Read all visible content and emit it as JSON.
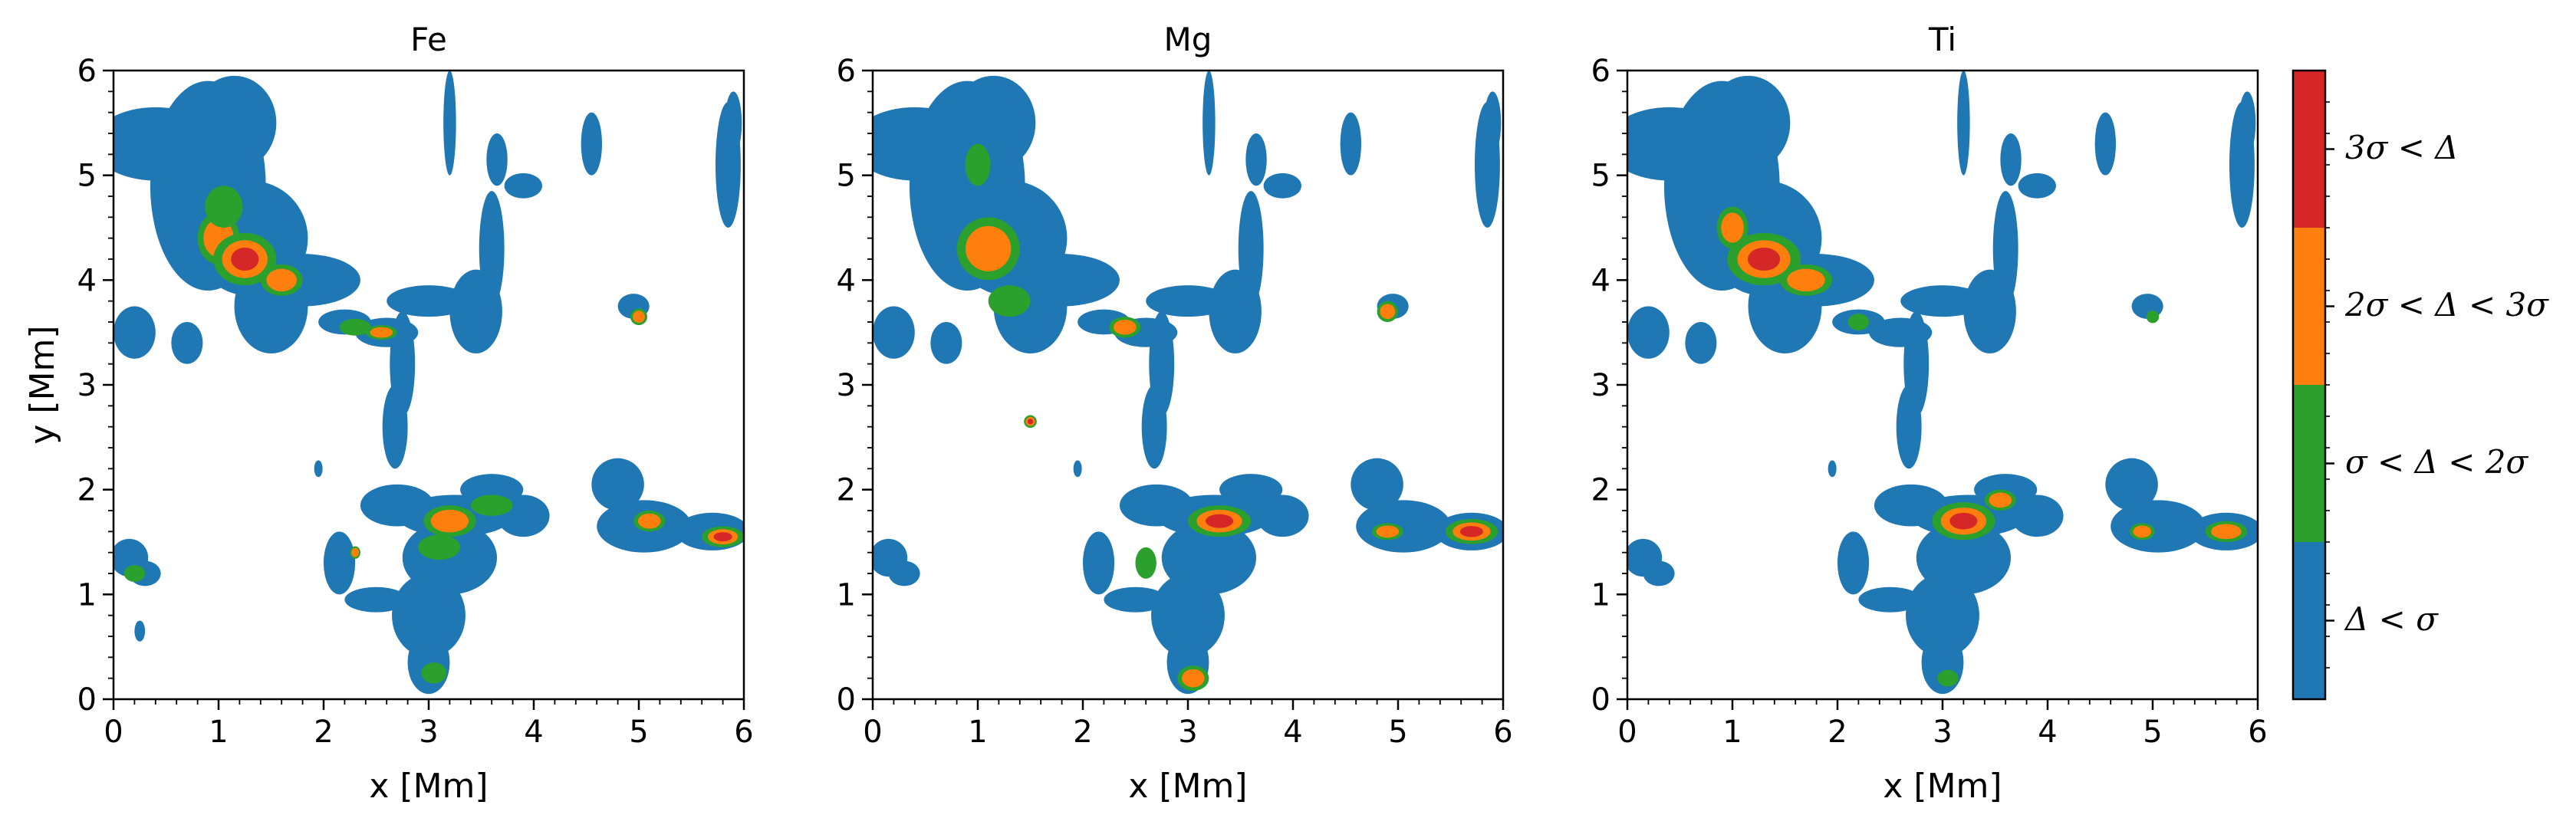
{
  "chart_data": {
    "type": "heatmap",
    "xlabel": "x [Mm]",
    "ylabel": "y [Mm]",
    "xlim": [
      0,
      6
    ],
    "ylim": [
      0,
      6
    ],
    "x_ticks": [
      "0",
      "1",
      "2",
      "3",
      "4",
      "5",
      "6"
    ],
    "y_ticks": [
      "0",
      "1",
      "2",
      "3",
      "4",
      "5",
      "6"
    ],
    "panels": [
      {
        "title": "Fe",
        "blobs": [
          [
            0.9,
            4.9,
            0.55,
            1.0
          ],
          [
            1.15,
            5.5,
            0.4,
            0.45
          ],
          [
            0.4,
            5.3,
            0.6,
            0.35
          ],
          [
            1.3,
            4.4,
            0.55,
            0.55
          ],
          [
            1.8,
            4.0,
            0.55,
            0.25
          ],
          [
            1.5,
            3.75,
            0.35,
            0.45
          ],
          [
            2.2,
            3.6,
            0.25,
            0.12
          ],
          [
            2.6,
            3.5,
            0.3,
            0.14
          ],
          [
            2.75,
            3.2,
            0.12,
            0.5
          ],
          [
            2.68,
            2.6,
            0.12,
            0.4
          ],
          [
            3.0,
            3.8,
            0.4,
            0.15
          ],
          [
            3.45,
            3.7,
            0.25,
            0.4
          ],
          [
            3.6,
            4.3,
            0.12,
            0.55
          ],
          [
            3.9,
            4.9,
            0.18,
            0.12
          ],
          [
            3.2,
            5.5,
            0.06,
            0.5
          ],
          [
            3.65,
            5.15,
            0.1,
            0.25
          ],
          [
            4.55,
            5.3,
            0.1,
            0.3
          ],
          [
            4.95,
            3.75,
            0.15,
            0.12
          ],
          [
            5.85,
            5.1,
            0.12,
            0.6
          ],
          [
            5.9,
            5.5,
            0.08,
            0.3
          ],
          [
            0.2,
            3.5,
            0.2,
            0.25
          ],
          [
            0.7,
            3.4,
            0.15,
            0.2
          ],
          [
            2.7,
            1.85,
            0.35,
            0.2
          ],
          [
            3.25,
            1.75,
            0.55,
            0.2
          ],
          [
            3.2,
            1.35,
            0.45,
            0.35
          ],
          [
            3.0,
            0.8,
            0.35,
            0.4
          ],
          [
            3.0,
            0.35,
            0.2,
            0.3
          ],
          [
            2.5,
            0.95,
            0.3,
            0.12
          ],
          [
            2.15,
            1.3,
            0.15,
            0.3
          ],
          [
            3.6,
            2.0,
            0.3,
            0.15
          ],
          [
            3.9,
            1.75,
            0.25,
            0.2
          ],
          [
            4.8,
            2.05,
            0.25,
            0.25
          ],
          [
            5.05,
            1.65,
            0.45,
            0.25
          ],
          [
            5.7,
            1.6,
            0.35,
            0.18
          ],
          [
            0.15,
            1.35,
            0.18,
            0.18
          ],
          [
            0.3,
            1.2,
            0.15,
            0.12
          ],
          [
            0.25,
            0.65,
            0.05,
            0.1
          ],
          [
            1.95,
            2.2,
            0.04,
            0.08
          ]
        ],
        "hot": [
          [
            1.0,
            4.4,
            2,
            0.2,
            0.25
          ],
          [
            1.25,
            4.2,
            3,
            0.3,
            0.25
          ],
          [
            1.6,
            4.0,
            2,
            0.2,
            0.15
          ],
          [
            2.3,
            3.55,
            1,
            0.15,
            0.08
          ],
          [
            2.55,
            3.5,
            2,
            0.15,
            0.07
          ],
          [
            1.05,
            4.7,
            1,
            0.18,
            0.2
          ],
          [
            3.2,
            1.7,
            2,
            0.25,
            0.15
          ],
          [
            3.6,
            1.85,
            1,
            0.2,
            0.1
          ],
          [
            3.1,
            1.45,
            1,
            0.2,
            0.12
          ],
          [
            3.05,
            0.25,
            1,
            0.12,
            0.1
          ],
          [
            5.8,
            1.55,
            3,
            0.2,
            0.1
          ],
          [
            5.1,
            1.7,
            2,
            0.15,
            0.1
          ],
          [
            5.0,
            3.65,
            2,
            0.08,
            0.08
          ],
          [
            0.2,
            1.2,
            1,
            0.1,
            0.08
          ],
          [
            2.3,
            1.4,
            2,
            0.05,
            0.06
          ]
        ]
      },
      {
        "title": "Mg",
        "blobs": [
          [
            0.9,
            4.9,
            0.55,
            1.0
          ],
          [
            1.15,
            5.5,
            0.4,
            0.45
          ],
          [
            0.4,
            5.3,
            0.6,
            0.35
          ],
          [
            1.3,
            4.4,
            0.55,
            0.55
          ],
          [
            1.8,
            4.0,
            0.55,
            0.25
          ],
          [
            1.5,
            3.75,
            0.35,
            0.45
          ],
          [
            2.2,
            3.6,
            0.25,
            0.12
          ],
          [
            2.6,
            3.5,
            0.3,
            0.14
          ],
          [
            2.75,
            3.2,
            0.12,
            0.5
          ],
          [
            2.68,
            2.6,
            0.12,
            0.4
          ],
          [
            3.0,
            3.8,
            0.4,
            0.15
          ],
          [
            3.45,
            3.7,
            0.25,
            0.4
          ],
          [
            3.6,
            4.3,
            0.12,
            0.55
          ],
          [
            3.9,
            4.9,
            0.18,
            0.12
          ],
          [
            3.2,
            5.5,
            0.06,
            0.5
          ],
          [
            3.65,
            5.15,
            0.1,
            0.25
          ],
          [
            4.55,
            5.3,
            0.1,
            0.3
          ],
          [
            4.95,
            3.75,
            0.15,
            0.12
          ],
          [
            5.85,
            5.1,
            0.12,
            0.6
          ],
          [
            5.9,
            5.5,
            0.08,
            0.3
          ],
          [
            0.2,
            3.5,
            0.2,
            0.25
          ],
          [
            0.7,
            3.4,
            0.15,
            0.2
          ],
          [
            2.7,
            1.85,
            0.35,
            0.2
          ],
          [
            3.25,
            1.75,
            0.55,
            0.2
          ],
          [
            3.2,
            1.35,
            0.45,
            0.35
          ],
          [
            3.0,
            0.8,
            0.35,
            0.4
          ],
          [
            3.0,
            0.35,
            0.2,
            0.3
          ],
          [
            2.5,
            0.95,
            0.3,
            0.12
          ],
          [
            2.15,
            1.3,
            0.15,
            0.3
          ],
          [
            3.6,
            2.0,
            0.3,
            0.15
          ],
          [
            3.9,
            1.75,
            0.25,
            0.2
          ],
          [
            4.8,
            2.05,
            0.25,
            0.25
          ],
          [
            5.05,
            1.65,
            0.45,
            0.25
          ],
          [
            5.7,
            1.6,
            0.35,
            0.18
          ],
          [
            0.15,
            1.35,
            0.18,
            0.18
          ],
          [
            0.3,
            1.2,
            0.15,
            0.12
          ],
          [
            1.5,
            2.65,
            0.06,
            0.06
          ],
          [
            1.95,
            2.2,
            0.04,
            0.08
          ]
        ],
        "hot": [
          [
            1.1,
            4.3,
            2,
            0.3,
            0.3
          ],
          [
            1.3,
            3.8,
            1,
            0.2,
            0.15
          ],
          [
            1.0,
            5.1,
            1,
            0.12,
            0.2
          ],
          [
            2.4,
            3.55,
            2,
            0.15,
            0.1
          ],
          [
            3.3,
            1.7,
            3,
            0.3,
            0.15
          ],
          [
            3.05,
            0.2,
            2,
            0.15,
            0.12
          ],
          [
            5.7,
            1.6,
            3,
            0.25,
            0.12
          ],
          [
            4.9,
            1.6,
            2,
            0.15,
            0.08
          ],
          [
            4.9,
            3.7,
            2,
            0.1,
            0.1
          ],
          [
            2.6,
            1.3,
            1,
            0.1,
            0.15
          ],
          [
            1.5,
            2.65,
            3,
            0.06,
            0.06
          ]
        ]
      },
      {
        "title": "Ti",
        "blobs": [
          [
            0.9,
            4.9,
            0.55,
            1.0
          ],
          [
            1.15,
            5.5,
            0.4,
            0.45
          ],
          [
            0.4,
            5.3,
            0.6,
            0.35
          ],
          [
            1.3,
            4.4,
            0.55,
            0.55
          ],
          [
            1.8,
            4.0,
            0.55,
            0.25
          ],
          [
            1.5,
            3.75,
            0.35,
            0.45
          ],
          [
            2.2,
            3.6,
            0.25,
            0.12
          ],
          [
            2.6,
            3.5,
            0.3,
            0.14
          ],
          [
            2.75,
            3.2,
            0.12,
            0.5
          ],
          [
            2.68,
            2.6,
            0.12,
            0.4
          ],
          [
            3.0,
            3.8,
            0.4,
            0.15
          ],
          [
            3.45,
            3.7,
            0.25,
            0.4
          ],
          [
            3.6,
            4.3,
            0.12,
            0.55
          ],
          [
            3.9,
            4.9,
            0.18,
            0.12
          ],
          [
            3.2,
            5.5,
            0.06,
            0.5
          ],
          [
            3.65,
            5.15,
            0.1,
            0.25
          ],
          [
            4.55,
            5.3,
            0.1,
            0.3
          ],
          [
            4.95,
            3.75,
            0.15,
            0.12
          ],
          [
            5.85,
            5.1,
            0.12,
            0.6
          ],
          [
            5.9,
            5.5,
            0.08,
            0.3
          ],
          [
            0.2,
            3.5,
            0.2,
            0.25
          ],
          [
            0.7,
            3.4,
            0.15,
            0.2
          ],
          [
            2.7,
            1.85,
            0.35,
            0.2
          ],
          [
            3.25,
            1.75,
            0.55,
            0.2
          ],
          [
            3.2,
            1.35,
            0.45,
            0.35
          ],
          [
            3.0,
            0.8,
            0.35,
            0.4
          ],
          [
            3.0,
            0.35,
            0.2,
            0.3
          ],
          [
            2.5,
            0.95,
            0.3,
            0.12
          ],
          [
            2.15,
            1.3,
            0.15,
            0.3
          ],
          [
            3.6,
            2.0,
            0.3,
            0.15
          ],
          [
            3.9,
            1.75,
            0.25,
            0.2
          ],
          [
            4.8,
            2.05,
            0.25,
            0.25
          ],
          [
            5.05,
            1.65,
            0.45,
            0.25
          ],
          [
            5.7,
            1.6,
            0.35,
            0.18
          ],
          [
            0.15,
            1.35,
            0.18,
            0.18
          ],
          [
            0.3,
            1.2,
            0.15,
            0.12
          ],
          [
            1.95,
            2.2,
            0.04,
            0.08
          ]
        ],
        "hot": [
          [
            1.3,
            4.2,
            3,
            0.35,
            0.25
          ],
          [
            1.0,
            4.5,
            2,
            0.15,
            0.2
          ],
          [
            1.7,
            4.0,
            2,
            0.25,
            0.15
          ],
          [
            2.2,
            3.6,
            1,
            0.1,
            0.08
          ],
          [
            3.2,
            1.7,
            3,
            0.3,
            0.18
          ],
          [
            3.55,
            1.9,
            2,
            0.15,
            0.1
          ],
          [
            5.7,
            1.6,
            2,
            0.2,
            0.1
          ],
          [
            4.9,
            1.6,
            2,
            0.12,
            0.08
          ],
          [
            3.05,
            0.2,
            1,
            0.1,
            0.08
          ],
          [
            5.0,
            3.65,
            1,
            0.06,
            0.06
          ]
        ]
      }
    ],
    "colorbar": {
      "colors": [
        "#1f77b4",
        "#2ca02c",
        "#ff7f0e",
        "#d62728"
      ],
      "labels": [
        "Δ < σ",
        "σ < Δ < 2σ",
        "2σ < Δ < 3σ",
        "3σ < Δ"
      ]
    }
  }
}
